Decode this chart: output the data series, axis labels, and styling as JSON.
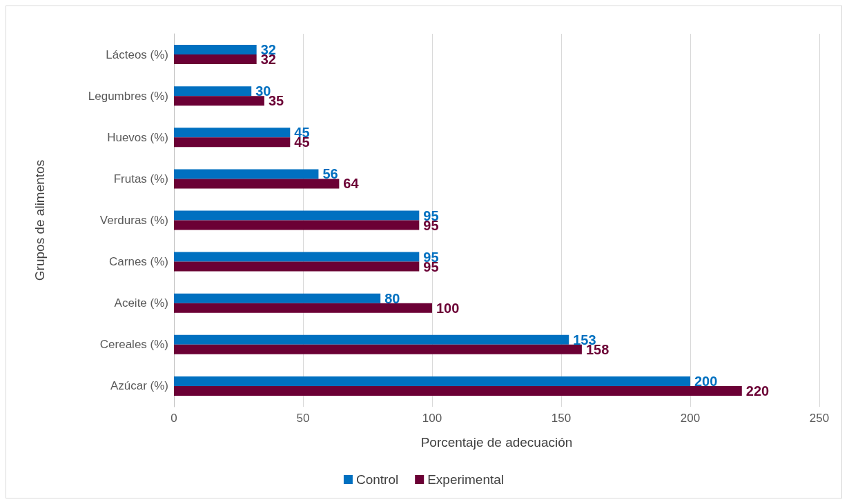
{
  "chart_data": {
    "type": "bar",
    "orientation": "horizontal",
    "xlabel": "Porcentaje de adecuación",
    "ylabel": "Grupos de alimentos",
    "categories": [
      "Lácteos (%)",
      "Legumbres (%)",
      "Huevos (%)",
      "Frutas (%)",
      "Verduras (%)",
      "Carnes (%)",
      "Aceite (%)",
      "Cereales (%)",
      "Azúcar (%)"
    ],
    "series": [
      {
        "name": "Control",
        "color": "#0070c0",
        "values": [
          32,
          30,
          45,
          56,
          95,
          95,
          80,
          153,
          200
        ]
      },
      {
        "name": "Experimental",
        "color": "#6b0035",
        "values": [
          32,
          35,
          45,
          64,
          95,
          95,
          100,
          158,
          220
        ]
      }
    ],
    "xlim": [
      0,
      250
    ],
    "xticks": [
      0,
      50,
      100,
      150,
      200,
      250
    ],
    "grid": "x",
    "legend": "bottom",
    "data_labels": true
  }
}
